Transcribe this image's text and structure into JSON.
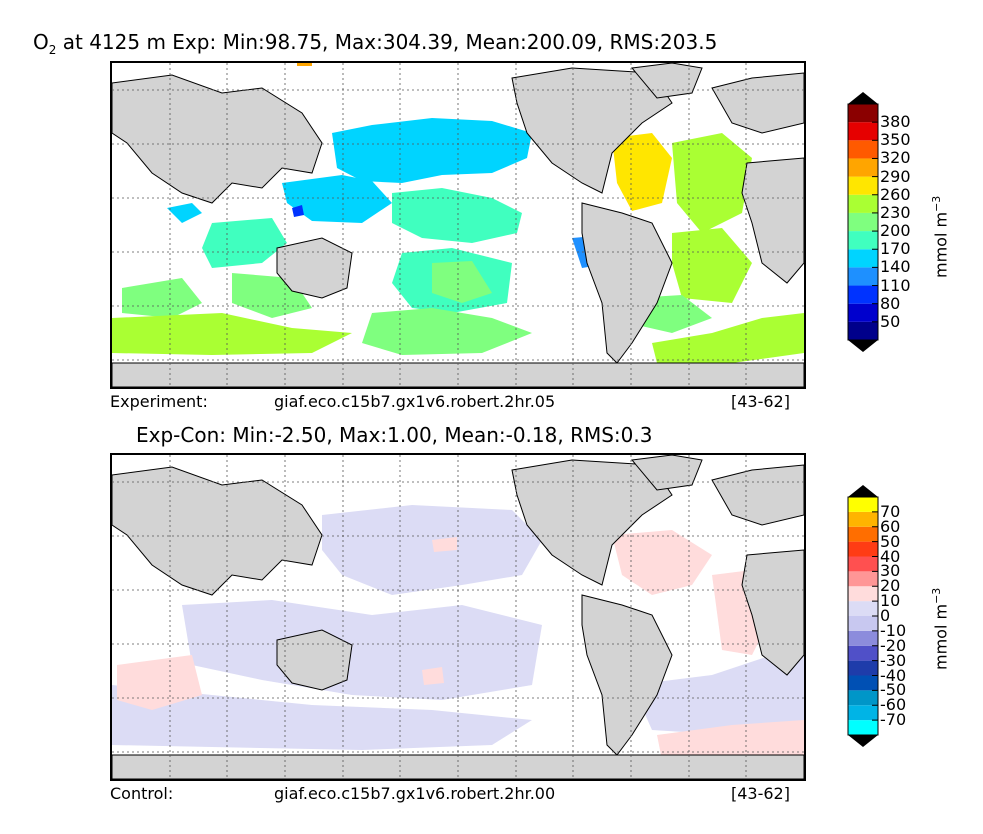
{
  "figure": {
    "top": {
      "title_species": "O",
      "title_sub": "2",
      "title_rest": " at 4125 m Exp: Min:98.75, Max:304.39, Mean:200.09, RMS:203.5",
      "footer_left": "Experiment:",
      "footer_center": "giaf.eco.c15b7.gx1v6.robert.2hr.05",
      "footer_right": "[43-62]",
      "colorbar": {
        "ticks": [
          "50",
          "80",
          "110",
          "140",
          "170",
          "200",
          "230",
          "260",
          "290",
          "320",
          "350",
          "380"
        ],
        "colors": [
          "#00008b",
          "#0000cd",
          "#0033ff",
          "#1e90ff",
          "#00d4ff",
          "#40ffbf",
          "#7fff7f",
          "#aaff33",
          "#ffe600",
          "#ffa500",
          "#ff5a00",
          "#e60000",
          "#8b0000"
        ],
        "over_color": "#000000",
        "under_color": "#000000",
        "unit_label": "mmol m",
        "unit_exp": "−3"
      }
    },
    "bottom": {
      "title": "Exp-Con: Min:-2.50, Max:1.00, Mean:-0.18, RMS:0.3",
      "footer_left": "Control:",
      "footer_center": "giaf.eco.c15b7.gx1v6.robert.2hr.00",
      "footer_right": "[43-62]",
      "colorbar": {
        "ticks": [
          "-70",
          "-60",
          "-50",
          "-40",
          "-30",
          "-20",
          "-10",
          "0",
          "10",
          "20",
          "30",
          "40",
          "50",
          "60",
          "70"
        ],
        "colors": [
          "#00ffff",
          "#00b4e6",
          "#0096c8",
          "#0050b4",
          "#1e3caa",
          "#5050c8",
          "#8c8cdc",
          "#c8c8f0",
          "#dcdcf5",
          "#ffdcdc",
          "#ff9696",
          "#ff5050",
          "#ff3c14",
          "#ff6e00",
          "#ffb400",
          "#ffff00"
        ],
        "unit_label": "mmol m",
        "unit_exp": "−3"
      }
    },
    "map_legend": {
      "land_color": "#d3d3d3",
      "ocean_color": "#ffffff",
      "grid": "dotted"
    }
  }
}
